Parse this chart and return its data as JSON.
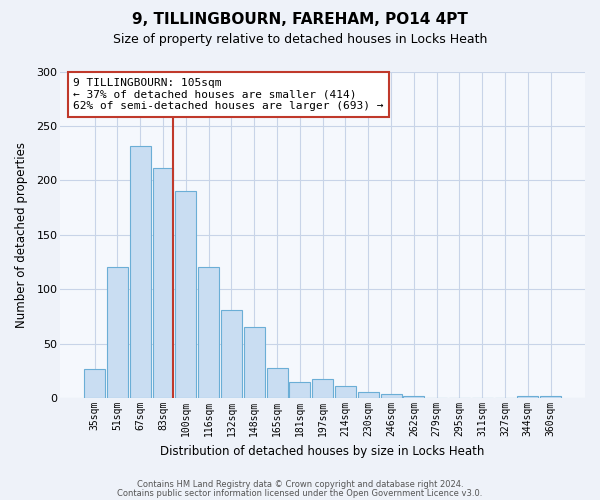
{
  "title": "9, TILLINGBOURN, FAREHAM, PO14 4PT",
  "subtitle": "Size of property relative to detached houses in Locks Heath",
  "xlabel": "Distribution of detached houses by size in Locks Heath",
  "ylabel": "Number of detached properties",
  "bar_labels": [
    "35sqm",
    "51sqm",
    "67sqm",
    "83sqm",
    "100sqm",
    "116sqm",
    "132sqm",
    "148sqm",
    "165sqm",
    "181sqm",
    "197sqm",
    "214sqm",
    "230sqm",
    "246sqm",
    "262sqm",
    "279sqm",
    "295sqm",
    "311sqm",
    "327sqm",
    "344sqm",
    "360sqm"
  ],
  "bar_values": [
    27,
    120,
    232,
    211,
    190,
    120,
    81,
    65,
    28,
    15,
    18,
    11,
    6,
    4,
    2,
    0,
    0,
    0,
    0,
    2,
    2
  ],
  "bar_color": "#c9ddf2",
  "bar_edge_color": "#6baed6",
  "ylim": [
    0,
    300
  ],
  "yticks": [
    0,
    50,
    100,
    150,
    200,
    250,
    300
  ],
  "vline_color": "#c0392b",
  "annotation_title": "9 TILLINGBOURN: 105sqm",
  "annotation_line1": "← 37% of detached houses are smaller (414)",
  "annotation_line2": "62% of semi-detached houses are larger (693) →",
  "annotation_box_edge_color": "#c0392b",
  "footer1": "Contains HM Land Registry data © Crown copyright and database right 2024.",
  "footer2": "Contains public sector information licensed under the Open Government Licence v3.0.",
  "background_color": "#eef2f9",
  "plot_bg_color": "#f5f8fd",
  "grid_color": "#c8d4e8"
}
